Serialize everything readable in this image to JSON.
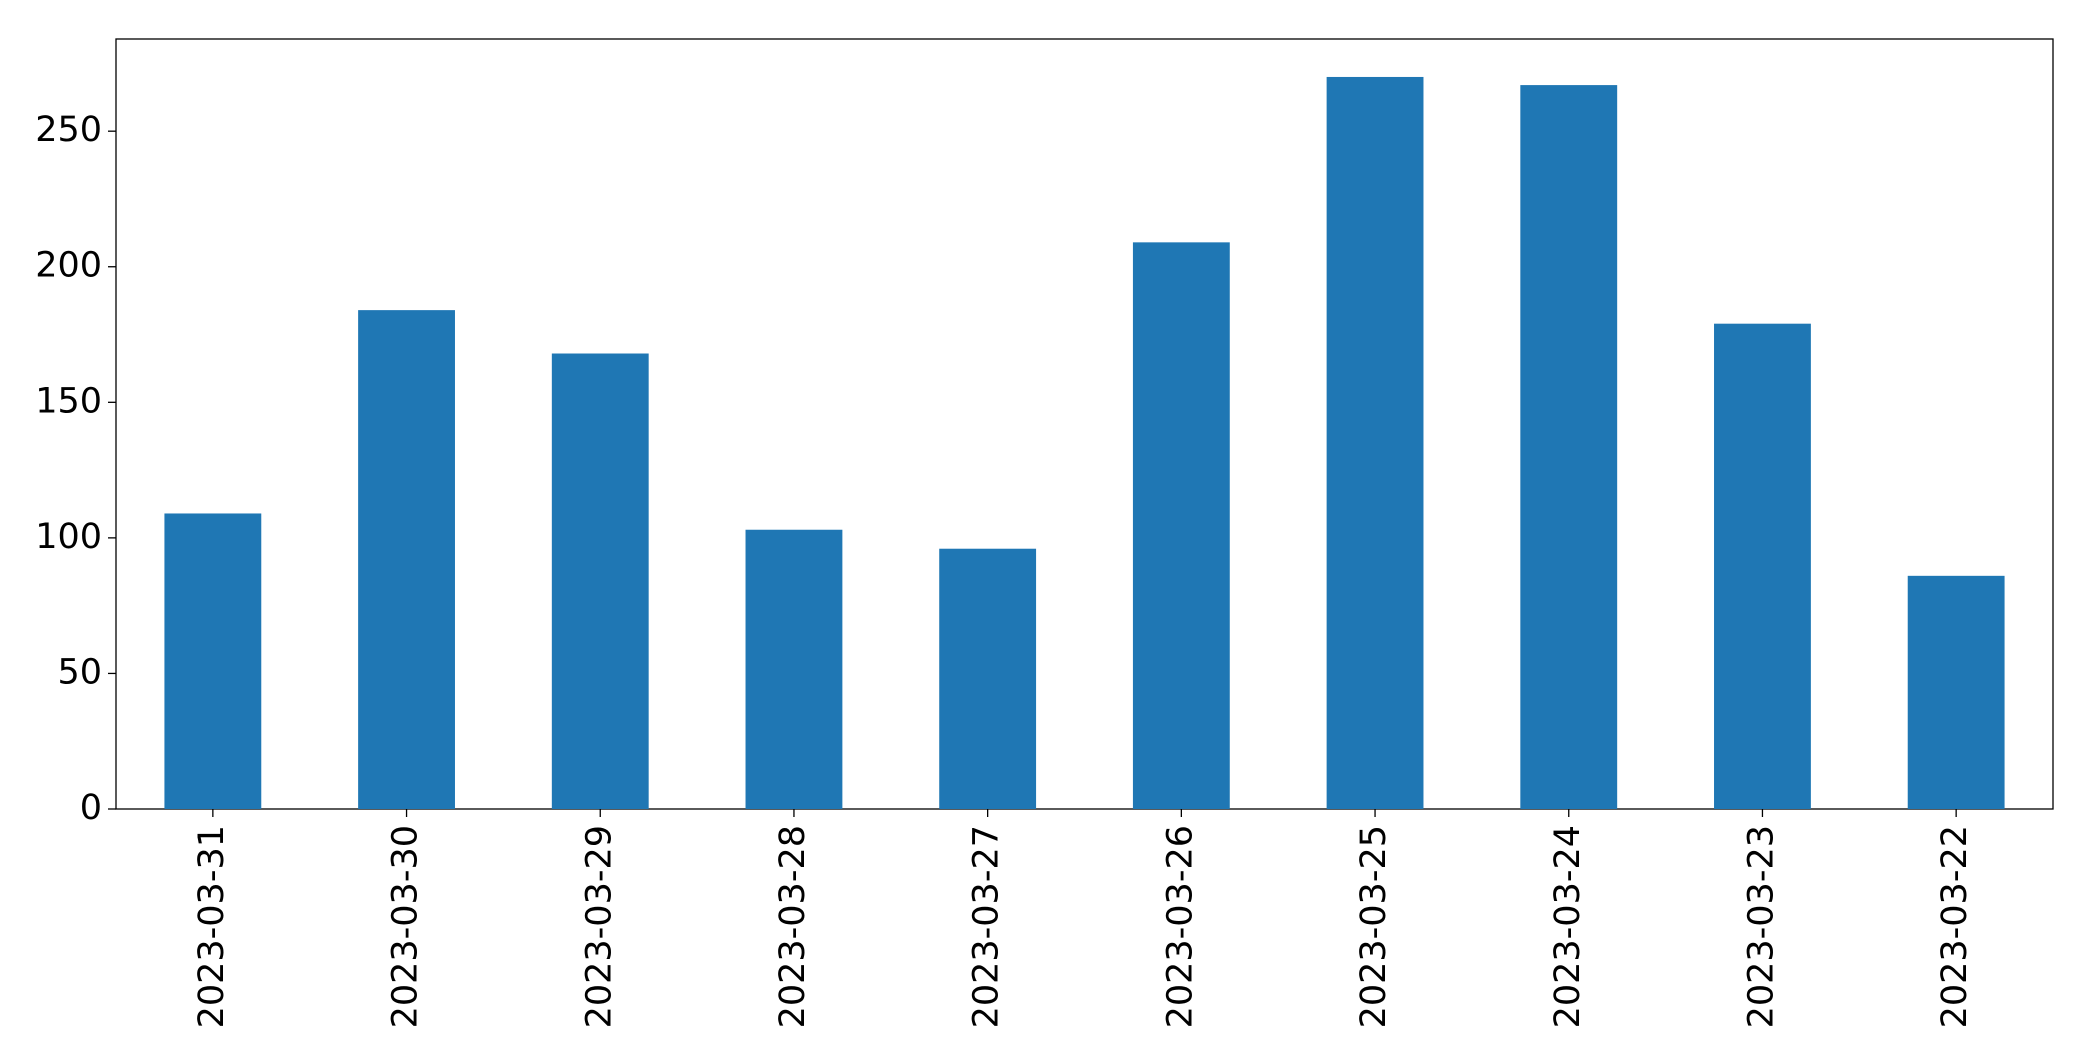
{
  "chart_data": {
    "type": "bar",
    "categories": [
      "2023-03-31",
      "2023-03-30",
      "2023-03-29",
      "2023-03-28",
      "2023-03-27",
      "2023-03-26",
      "2023-03-25",
      "2023-03-24",
      "2023-03-23",
      "2023-03-22"
    ],
    "values": [
      109,
      184,
      168,
      103,
      96,
      209,
      270,
      267,
      179,
      86
    ],
    "color": "#1f77b4",
    "ylim": [
      0,
      284
    ],
    "yticks": [
      0,
      50,
      100,
      150,
      200,
      250
    ],
    "grid": false
  }
}
